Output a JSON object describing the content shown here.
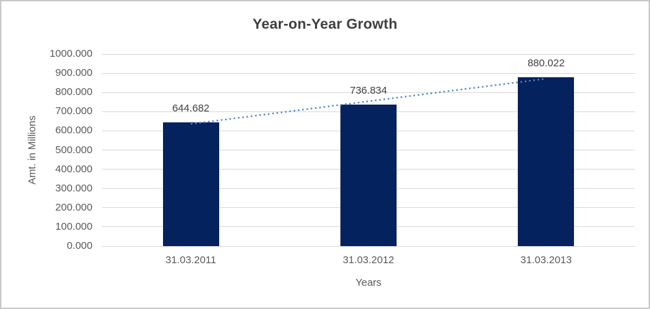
{
  "chart_data": {
    "type": "bar",
    "title": "Year-on-Year Growth",
    "xlabel": "Years",
    "ylabel": "Amt. in Millions",
    "categories": [
      "31.03.2011",
      "31.03.2012",
      "31.03.2013"
    ],
    "values": [
      644.682,
      736.834,
      880.022
    ],
    "data_labels": [
      "644.682",
      "736.834",
      "880.022"
    ],
    "ylim": [
      0,
      1000
    ],
    "ytick_step": 100,
    "ytick_labels": [
      "0.000",
      "100.000",
      "200.000",
      "300.000",
      "400.000",
      "500.000",
      "600.000",
      "700.000",
      "800.000",
      "900.000",
      "1000.000"
    ],
    "grid": true,
    "legend_position": "none",
    "trendline": {
      "type": "linear",
      "style": "dotted"
    },
    "colors": {
      "bar": "#04225e",
      "trendline": "#4e87c9",
      "gridline": "#d9d9d9",
      "title_text": "#3f3f3f",
      "axis_text": "#595959",
      "border": "#c8c8c8",
      "background": "#ffffff"
    }
  }
}
